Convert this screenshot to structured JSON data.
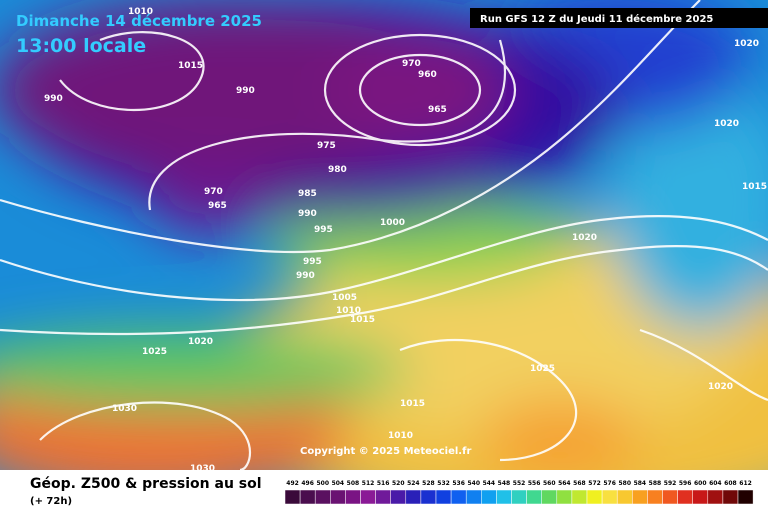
{
  "header": {
    "date": "Dimanche 14 décembre 2025",
    "time": "13:00 locale",
    "run": "Run GFS 12 Z du Jeudi 11 décembre 2025"
  },
  "isobar_labels": [
    1010,
    1015,
    990,
    990,
    970,
    960,
    965,
    975,
    980,
    970,
    965,
    985,
    990,
    995,
    1000,
    995,
    990,
    1005,
    1010,
    1015,
    1025,
    1020,
    1030,
    1030,
    1025,
    1015,
    1010,
    1020,
    1020,
    1020,
    1015,
    1020
  ],
  "copyright": "Copyright © 2025 Meteociel.fr",
  "footer": {
    "title": "Géop. Z500 & pression au sol",
    "lead": "(+ 72h)"
  },
  "scale": [
    492,
    496,
    500,
    504,
    508,
    512,
    516,
    520,
    524,
    528,
    532,
    536,
    540,
    544,
    548,
    552,
    556,
    560,
    564,
    568,
    572,
    576,
    580,
    584,
    588,
    592,
    596,
    600,
    604,
    608,
    612
  ]
}
